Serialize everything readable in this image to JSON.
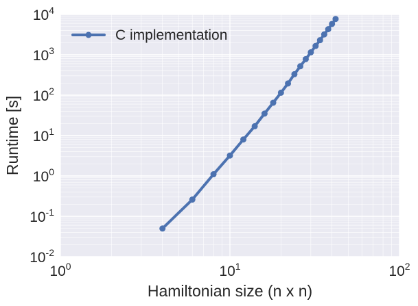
{
  "chart_data": {
    "type": "line",
    "xlabel": "Hamiltonian size (n x n)",
    "ylabel": "Runtime [s]",
    "xscale": "log",
    "yscale": "log",
    "xlim": [
      1,
      100
    ],
    "ylim": [
      0.01,
      10000
    ],
    "grid": true,
    "legend_position": "top-left",
    "x_ticks": [
      {
        "base": "10",
        "exp": "0",
        "value": 1
      },
      {
        "base": "10",
        "exp": "1",
        "value": 10
      },
      {
        "base": "10",
        "exp": "2",
        "value": 100
      }
    ],
    "y_ticks": [
      {
        "base": "10",
        "exp": "-2",
        "value": 0.01
      },
      {
        "base": "10",
        "exp": "-1",
        "value": 0.1
      },
      {
        "base": "10",
        "exp": "0",
        "value": 1
      },
      {
        "base": "10",
        "exp": "1",
        "value": 10
      },
      {
        "base": "10",
        "exp": "2",
        "value": 100
      },
      {
        "base": "10",
        "exp": "3",
        "value": 1000
      },
      {
        "base": "10",
        "exp": "4",
        "value": 10000
      }
    ],
    "series": [
      {
        "name": "C implementation",
        "color": "#4c72b0",
        "x": [
          4,
          6,
          8,
          10,
          12,
          14,
          16,
          18,
          20,
          22,
          24,
          26,
          28,
          30,
          32,
          34,
          36,
          38,
          40,
          42
        ],
        "y": [
          0.05,
          0.26,
          1.1,
          3.2,
          8.0,
          17,
          35,
          65,
          115,
          195,
          330,
          520,
          780,
          1150,
          1650,
          2300,
          3200,
          4300,
          5800,
          7700
        ]
      }
    ]
  }
}
